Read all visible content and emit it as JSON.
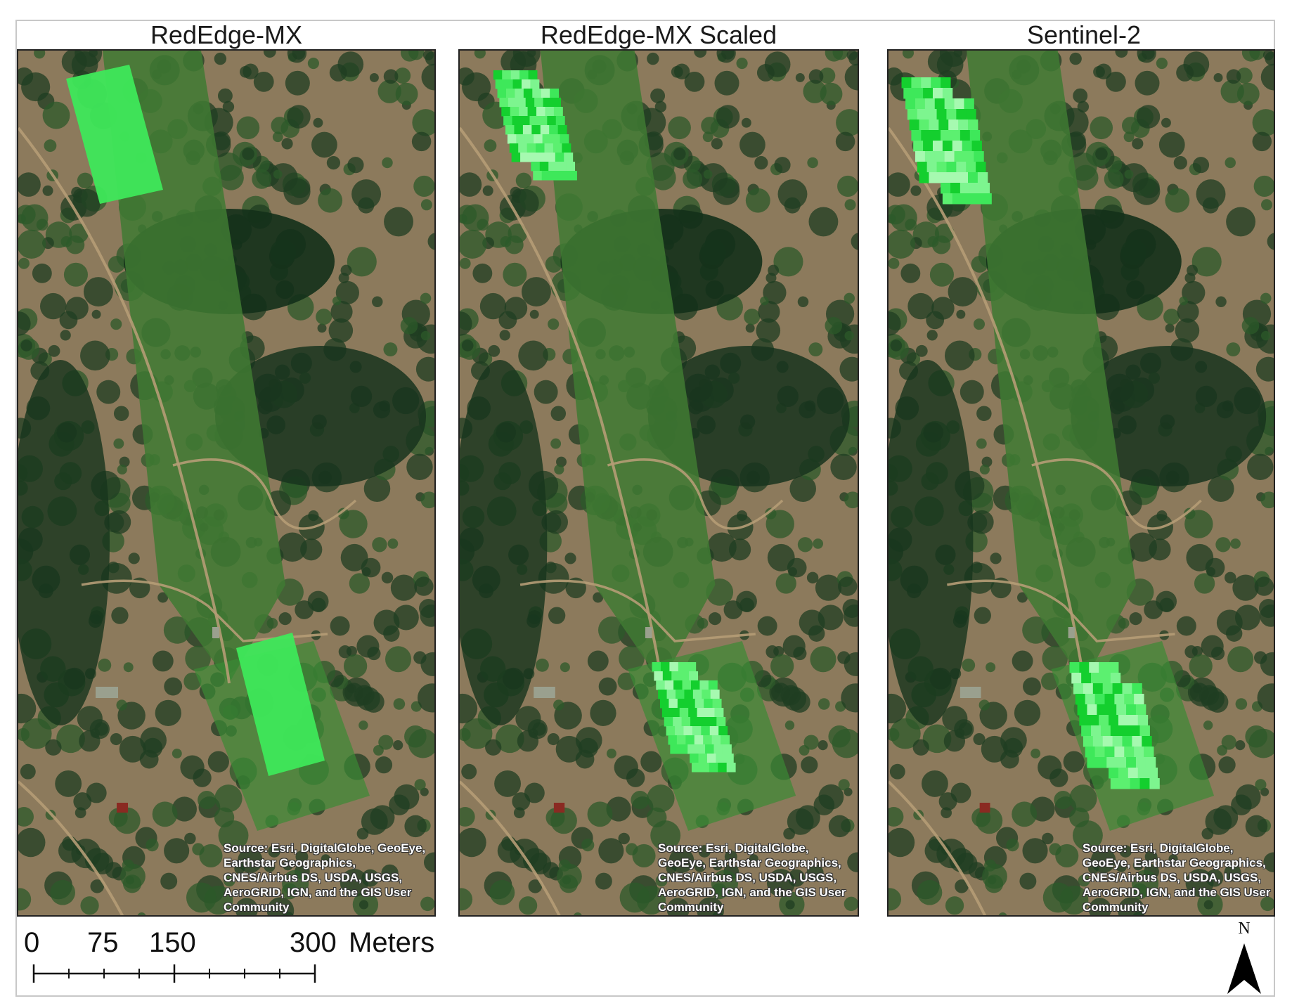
{
  "panels": [
    {
      "title": "RedEdge-MX",
      "credit": "Source: Esri, DigitalGlobe, GeoEye, Earthstar Geographics, CNES/Airbus DS, USDA, USGS, AeroGRID, IGN, and the GIS User Community"
    },
    {
      "title": "RedEdge-MX Scaled",
      "credit": "Source: Esri, DigitalGlobe, GeoEye, Earthstar Geographics, CNES/Airbus DS, USDA, USGS, AeroGRID, IGN, and the GIS User Community"
    },
    {
      "title": "Sentinel-2",
      "credit": "Source: Esri, DigitalGlobe, GeoEye, Earthstar Geographics, CNES/Airbus DS, USDA, USGS, AeroGRID, IGN, and the GIS User Community"
    }
  ],
  "scale": {
    "ticks": [
      "0",
      "75",
      "150",
      "300"
    ],
    "unit": "Meters",
    "tick_values": [
      0,
      75,
      150,
      300
    ]
  },
  "north_arrow": {
    "label": "N",
    "icon": "north-arrow-icon"
  },
  "colors": {
    "overlay_light": "#7df58f",
    "overlay_mid": "#3ee85a",
    "overlay_dark": "#14cf2e",
    "forest": "#1f3d22",
    "meadow": "#3f7a32",
    "dry_ground": "#8c7a5c"
  }
}
